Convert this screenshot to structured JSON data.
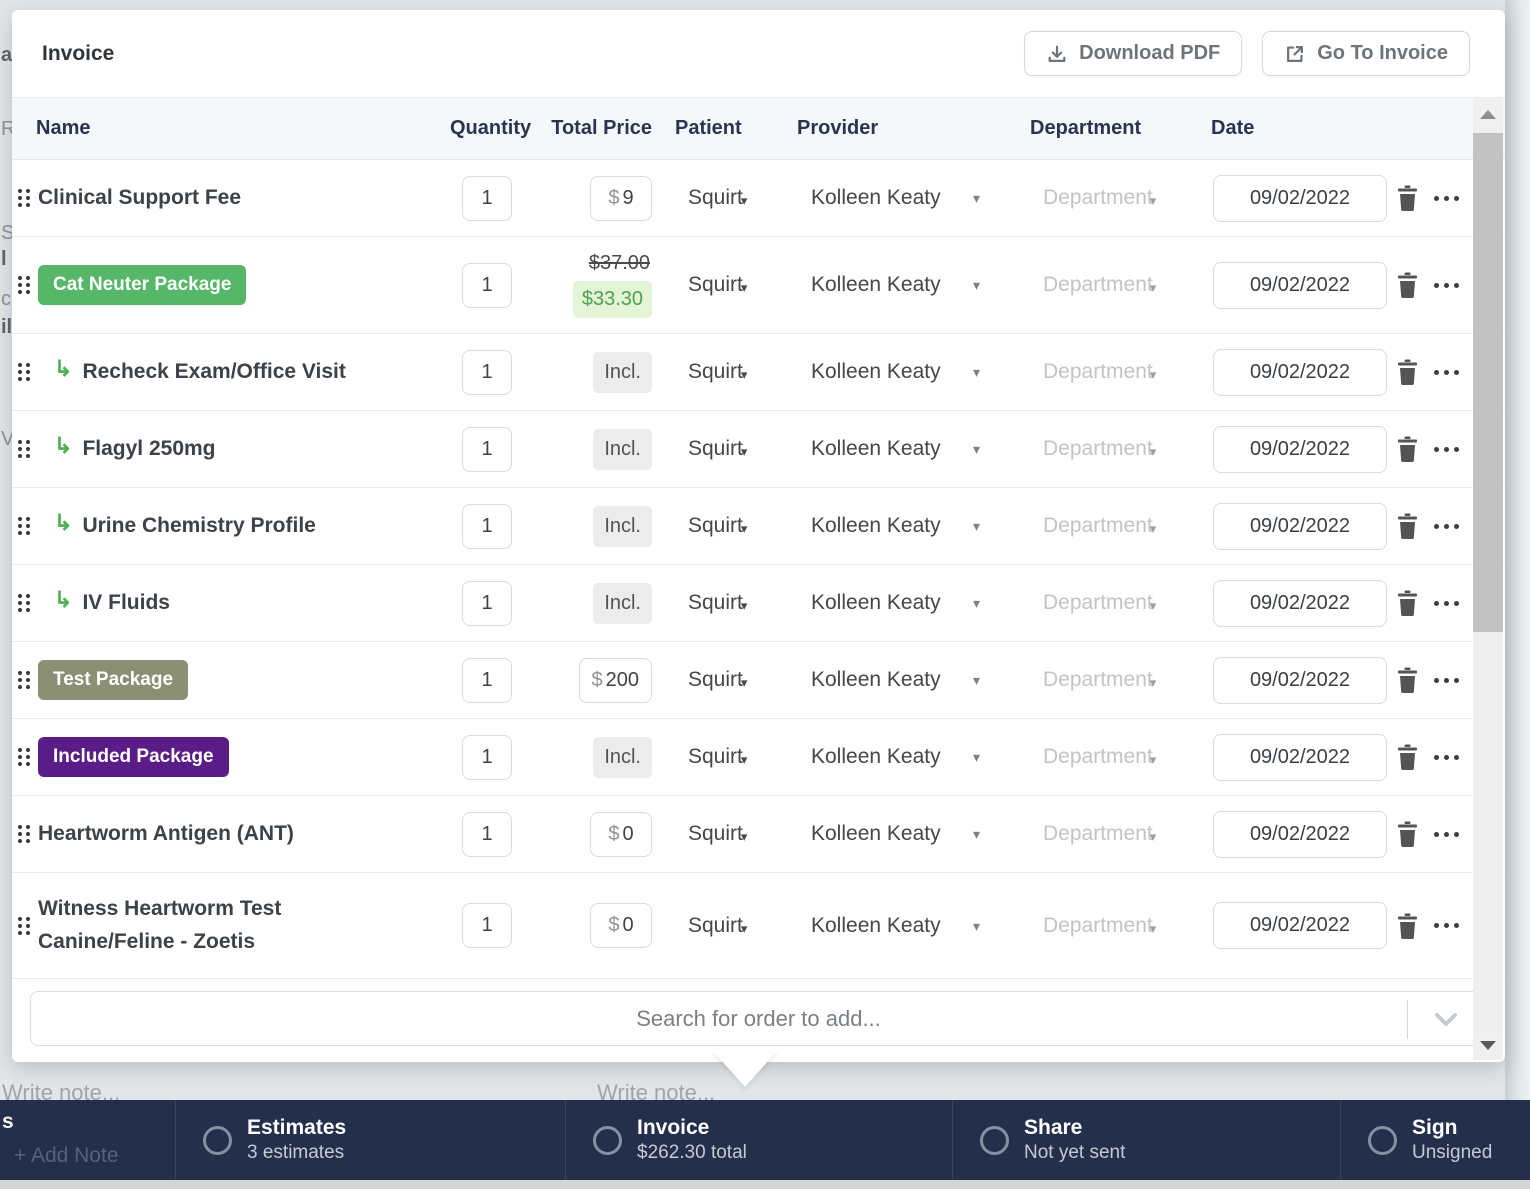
{
  "modal": {
    "title": "Invoice",
    "buttons": [
      {
        "label": "Download PDF",
        "icon": "download-icon"
      },
      {
        "label": "Go To Invoice",
        "icon": "external-link-icon"
      }
    ],
    "table": {
      "columns": [
        "Name",
        "Quantity",
        "Total Price",
        "Patient",
        "Provider",
        "Department",
        "Date"
      ],
      "included_label": "Incl.",
      "row_defaults": {
        "quantity": "1",
        "patient": "Squirt",
        "provider": "Kolleen Keaty",
        "department_placeholder": "Department",
        "date": "09/02/2022"
      },
      "rows": [
        {
          "name": "Clinical Support Fee",
          "kind": "item",
          "price": {
            "kind": "box",
            "currency": "$",
            "amount": "9"
          }
        },
        {
          "name": "Cat Neuter Package",
          "kind": "package",
          "badge_color": "#57b768",
          "size": "tall",
          "price": {
            "kind": "discount",
            "original": "$37.00",
            "discounted": "$33.30"
          }
        },
        {
          "name": "Recheck Exam/Office Visit",
          "kind": "subitem",
          "price": {
            "kind": "incl"
          }
        },
        {
          "name": "Flagyl 250mg",
          "kind": "subitem",
          "price": {
            "kind": "incl"
          }
        },
        {
          "name": "Urine Chemistry Profile",
          "kind": "subitem",
          "price": {
            "kind": "incl"
          }
        },
        {
          "name": "IV Fluids",
          "kind": "subitem",
          "price": {
            "kind": "incl"
          }
        },
        {
          "name": "Test Package",
          "kind": "package",
          "badge_color": "#8b8f73",
          "price": {
            "kind": "box",
            "currency": "$",
            "amount": "200"
          }
        },
        {
          "name": "Included Package",
          "kind": "package",
          "badge_color": "#5a1d87",
          "price": {
            "kind": "incl"
          }
        },
        {
          "name": "Heartworm Antigen (ANT)",
          "kind": "item",
          "price": {
            "kind": "box",
            "currency": "$",
            "amount": "0"
          }
        },
        {
          "name": "Witness Heartworm Test Canine/Feline - Zoetis",
          "kind": "item",
          "size": "xl",
          "price": {
            "kind": "box",
            "currency": "$",
            "amount": "0"
          }
        }
      ]
    },
    "search": {
      "placeholder": "Search for order to add..."
    }
  },
  "bottom_bar": {
    "left_stub": "s",
    "add_note_label": "+ Add Note",
    "sections": [
      {
        "title": "Estimates",
        "subtitle": "3 estimates"
      },
      {
        "title": "Invoice",
        "subtitle": "$262.30 total"
      },
      {
        "title": "Share",
        "subtitle": "Not yet sent"
      },
      {
        "title": "Sign",
        "subtitle": "Unsigned"
      }
    ]
  },
  "overlay": {
    "write_note_placeholder": "Write note...",
    "left_edge_fragments": [
      "a",
      "R",
      "S",
      "l",
      "c",
      "il",
      "V"
    ]
  },
  "colors": {
    "badge_green": "#57b768",
    "badge_olive": "#8b8f73",
    "badge_purple": "#5a1d87",
    "discount_text": "#4da24f",
    "discount_bg": "#e4f4d7",
    "bottom_bar_bg": "#242f4c"
  }
}
